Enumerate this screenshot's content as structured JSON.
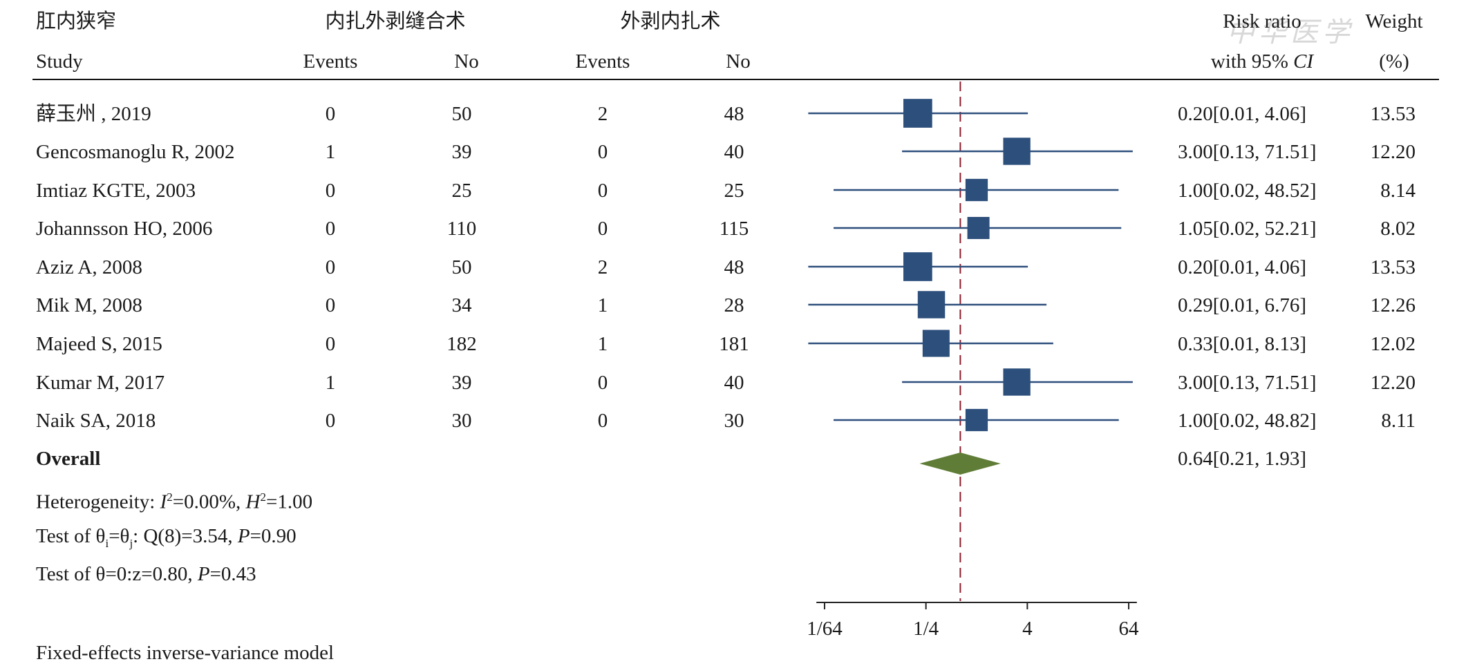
{
  "header": {
    "outcome": "肛内狭窄",
    "group1": "内扎外剥缝合术",
    "group2": "外剥内扎术",
    "risk_ratio": "Risk ratio",
    "weight": "Weight",
    "study": "Study",
    "events1": "Events",
    "no1": "No",
    "events2": "Events",
    "no2": "No",
    "ci_prefix": "with 95% ",
    "ci_italic": "CI",
    "weight_unit": "(%)"
  },
  "rows": [
    {
      "study": "薛玉州 , 2019",
      "e1": "0",
      "n1": "50",
      "e2": "2",
      "n2": "48",
      "ci": "0.20[0.01, 4.06]",
      "weight": "13.53"
    },
    {
      "study": "Gencosmanoglu R, 2002",
      "e1": "1",
      "n1": "39",
      "e2": "0",
      "n2": "40",
      "ci": "3.00[0.13, 71.51]",
      "weight": "12.20"
    },
    {
      "study": "Imtiaz KGTE, 2003",
      "e1": "0",
      "n1": "25",
      "e2": "0",
      "n2": "25",
      "ci": "1.00[0.02, 48.52]",
      "weight": "8.14"
    },
    {
      "study": "Johannsson HO, 2006",
      "e1": "0",
      "n1": "110",
      "e2": "0",
      "n2": "115",
      "ci": "1.05[0.02, 52.21]",
      "weight": "8.02"
    },
    {
      "study": "Aziz A, 2008",
      "e1": "0",
      "n1": "50",
      "e2": "2",
      "n2": "48",
      "ci": "0.20[0.01, 4.06]",
      "weight": "13.53"
    },
    {
      "study": "Mik M, 2008",
      "e1": "0",
      "n1": "34",
      "e2": "1",
      "n2": "28",
      "ci": "0.29[0.01, 6.76]",
      "weight": "12.26"
    },
    {
      "study": "Majeed S, 2015",
      "e1": "0",
      "n1": "182",
      "e2": "1",
      "n2": "181",
      "ci": "0.33[0.01, 8.13]",
      "weight": "12.02"
    },
    {
      "study": "Kumar M, 2017",
      "e1": "1",
      "n1": "39",
      "e2": "0",
      "n2": "40",
      "ci": "3.00[0.13, 71.51]",
      "weight": "12.20"
    },
    {
      "study": "Naik SA, 2018",
      "e1": "0",
      "n1": "30",
      "e2": "0",
      "n2": "30",
      "ci": "1.00[0.02, 48.82]",
      "weight": "8.11"
    }
  ],
  "overall": {
    "label": "Overall",
    "ci": "0.64[0.21, 1.93]"
  },
  "stats": {
    "het_prefix": "Heterogeneity: ",
    "het_i": "I",
    "het_sup": "2",
    "het_mid": "=0.00%, ",
    "het_h": "H",
    "het_sup2": "2",
    "het_end": "=1.00",
    "q_prefix": "Test of θ",
    "q_sub1": "i",
    "q_eq": "=θ",
    "q_sub2": "j",
    "q_mid": ": Q(8)=3.54, ",
    "q_p": "P",
    "q_end": "=0.90",
    "z_prefix": "Test of θ=0:z=0.80, ",
    "z_p": "P",
    "z_end": "=0.43"
  },
  "footer": "Fixed-effects inverse-variance model",
  "watermark": "中华医学",
  "chart_data": {
    "type": "forest",
    "x_scale": "log2",
    "x_ticks": [
      {
        "label": "1/64",
        "value": 0.015625
      },
      {
        "label": "1/4",
        "value": 0.25
      },
      {
        "label": "4",
        "value": 4
      },
      {
        "label": "64",
        "value": 64
      }
    ],
    "xlim": [
      0.0125,
      80
    ],
    "reference_line": 1,
    "pooled_line": 0.64,
    "marker_color": "#2d4f7c",
    "diamond_color": "#5f7d36",
    "ref_line_color": "#8b1c2c",
    "studies": [
      {
        "rr": 0.2,
        "lo": 0.01,
        "hi": 4.06,
        "weight": 13.53
      },
      {
        "rr": 3.0,
        "lo": 0.13,
        "hi": 71.51,
        "weight": 12.2
      },
      {
        "rr": 1.0,
        "lo": 0.02,
        "hi": 48.52,
        "weight": 8.14
      },
      {
        "rr": 1.05,
        "lo": 0.02,
        "hi": 52.21,
        "weight": 8.02
      },
      {
        "rr": 0.2,
        "lo": 0.01,
        "hi": 4.06,
        "weight": 13.53
      },
      {
        "rr": 0.29,
        "lo": 0.01,
        "hi": 6.76,
        "weight": 12.26
      },
      {
        "rr": 0.33,
        "lo": 0.01,
        "hi": 8.13,
        "weight": 12.02
      },
      {
        "rr": 3.0,
        "lo": 0.13,
        "hi": 71.51,
        "weight": 12.2
      },
      {
        "rr": 1.0,
        "lo": 0.02,
        "hi": 48.82,
        "weight": 8.11
      }
    ],
    "overall": {
      "rr": 0.64,
      "lo": 0.21,
      "hi": 1.93
    }
  }
}
